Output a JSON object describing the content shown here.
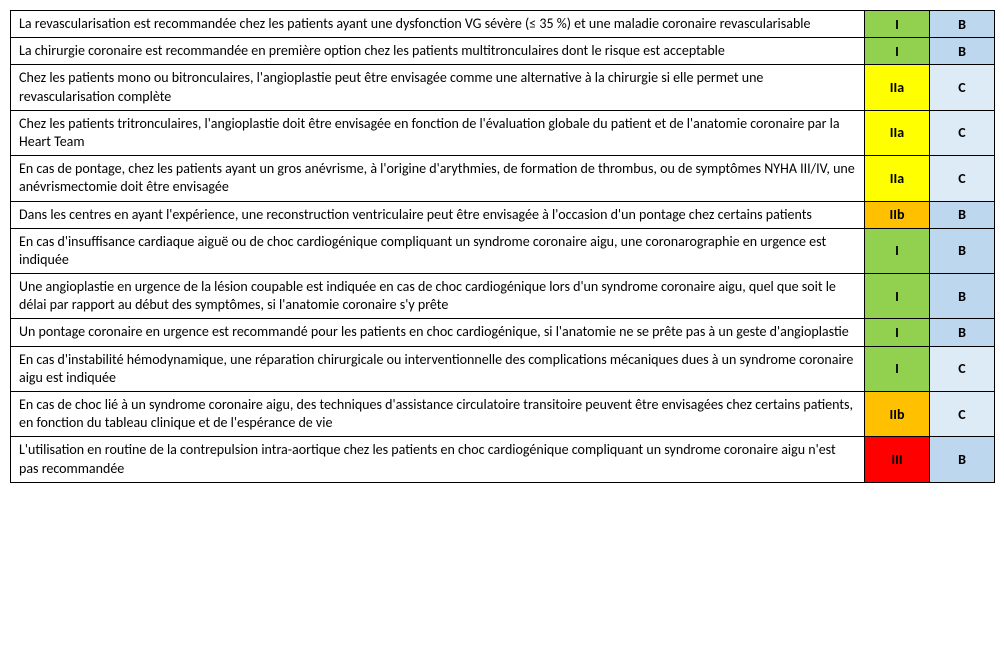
{
  "table": {
    "columns": {
      "recommendation_width": 854,
      "class_width": 65,
      "level_width": 65
    },
    "class_colors": {
      "I": "#92d050",
      "IIa": "#ffff00",
      "IIb": "#ffc000",
      "III": "#ff0000"
    },
    "level_colors": {
      "A": "#d9e1f2",
      "B": "#bdd7ee",
      "C": "#ddebf7"
    },
    "text_color": "#000000",
    "border_color": "#000000",
    "font_family": "Calibri",
    "font_size_pt": 11,
    "rows": [
      {
        "recommendation": "La revascularisation est recommandée chez les patients ayant une dysfonction VG sévère (≤ 35 %) et une maladie coronaire revascularisable",
        "class": "I",
        "level": "B"
      },
      {
        "recommendation": "La chirurgie coronaire est recommandée en première option chez les patients multitronculaires dont le risque est acceptable",
        "class": "I",
        "level": "B"
      },
      {
        "recommendation": "Chez les patients mono ou bitronculaires, l'angioplastie peut être envisagée comme une alternative à la chirurgie si elle permet une revascularisation complète",
        "class": "IIa",
        "level": "C"
      },
      {
        "recommendation": "Chez les patients tritronculaires, l'angioplastie doit être envisagée en fonction de l'évaluation globale du patient et de l'anatomie coronaire par la Heart Team",
        "class": "IIa",
        "level": "C"
      },
      {
        "recommendation": "En cas de pontage, chez les patients ayant un gros anévrisme, à l'origine d'arythmies, de formation de thrombus, ou de symptômes NYHA III/IV, une anévrismectomie doit être envisagée",
        "class": "IIa",
        "level": "C"
      },
      {
        "recommendation": "Dans les centres en ayant l'expérience, une reconstruction ventriculaire peut être envisagée à l'occasion d'un pontage chez certains patients",
        "class": "IIb",
        "level": "B"
      },
      {
        "recommendation": "En cas d'insuffisance cardiaque aiguë ou de choc cardiogénique compliquant un syndrome coronaire aigu, une coronarographie en urgence est indiquée",
        "class": "I",
        "level": "B"
      },
      {
        "recommendation": "Une angioplastie en urgence de la lésion coupable est indiquée en cas de choc cardiogénique lors d'un syndrome coronaire aigu, quel que soit le délai par rapport au début des symptômes, si l'anatomie coronaire s'y prête",
        "class": "I",
        "level": "B"
      },
      {
        "recommendation": "Un pontage coronaire en urgence est recommandé pour les patients en choc cardiogénique, si l'anatomie ne se prête pas à un geste d'angioplastie",
        "class": "I",
        "level": "B"
      },
      {
        "recommendation": "En cas d'instabilité hémodynamique, une réparation chirurgicale ou interventionnelle des complications mécaniques dues à un syndrome coronaire aigu est indiquée",
        "class": "I",
        "level": "C"
      },
      {
        "recommendation": "En cas de choc lié à un syndrome coronaire aigu, des techniques d'assistance circulatoire transitoire peuvent être envisagées chez certains patients, en fonction du tableau clinique et de l'espérance de vie",
        "class": "IIb",
        "level": "C"
      },
      {
        "recommendation": "L'utilisation en routine de la contrepulsion intra-aortique chez les patients en choc cardiogénique compliquant un syndrome coronaire aigu n'est pas recommandée",
        "class": "III",
        "level": "B"
      }
    ]
  }
}
